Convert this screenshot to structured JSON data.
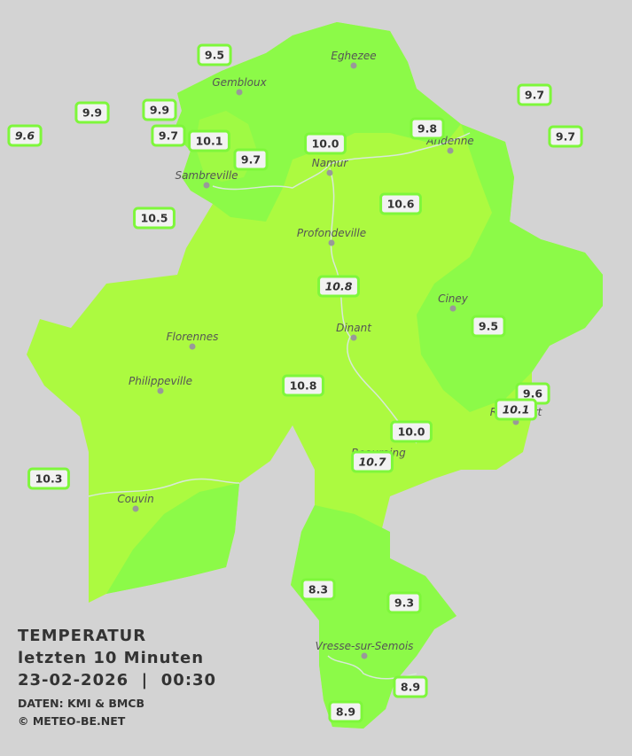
{
  "legend": {
    "title": "TEMPERATUR",
    "subtitle": "letzten 10 Minuten",
    "timestamp": "23-02-2026  |  00:30",
    "source": "DATEN: KMI & BMCB",
    "copyright": "© METEO-BE.NET"
  },
  "cities": [
    {
      "name": "Eghezee"
    },
    {
      "name": "Gembloux"
    },
    {
      "name": "Andenne"
    },
    {
      "name": "Namur"
    },
    {
      "name": "Sambreville"
    },
    {
      "name": "Profondeville"
    },
    {
      "name": "Ciney"
    },
    {
      "name": "Dinant"
    },
    {
      "name": "Florennes"
    },
    {
      "name": "Philippeville"
    },
    {
      "name": "Rochefort"
    },
    {
      "name": "Beauraing"
    },
    {
      "name": "Couvin"
    },
    {
      "name": "Vresse-sur-Semois"
    }
  ],
  "stations": [
    {
      "value": "9.5"
    },
    {
      "value": "9.9"
    },
    {
      "value": "9.9"
    },
    {
      "value": "9.6"
    },
    {
      "value": "9.7"
    },
    {
      "value": "10.1"
    },
    {
      "value": "9.7"
    },
    {
      "value": "10.0"
    },
    {
      "value": "9.8"
    },
    {
      "value": "9.7"
    },
    {
      "value": "9.7"
    },
    {
      "value": "10.5"
    },
    {
      "value": "10.6"
    },
    {
      "value": "10.8"
    },
    {
      "value": "9.5"
    },
    {
      "value": "10.8"
    },
    {
      "value": "9.6"
    },
    {
      "value": "10.1"
    },
    {
      "value": "10.0"
    },
    {
      "value": "10.7"
    },
    {
      "value": "10.3"
    },
    {
      "value": "8.3"
    },
    {
      "value": "9.3"
    },
    {
      "value": "8.9"
    },
    {
      "value": "8.9"
    }
  ]
}
